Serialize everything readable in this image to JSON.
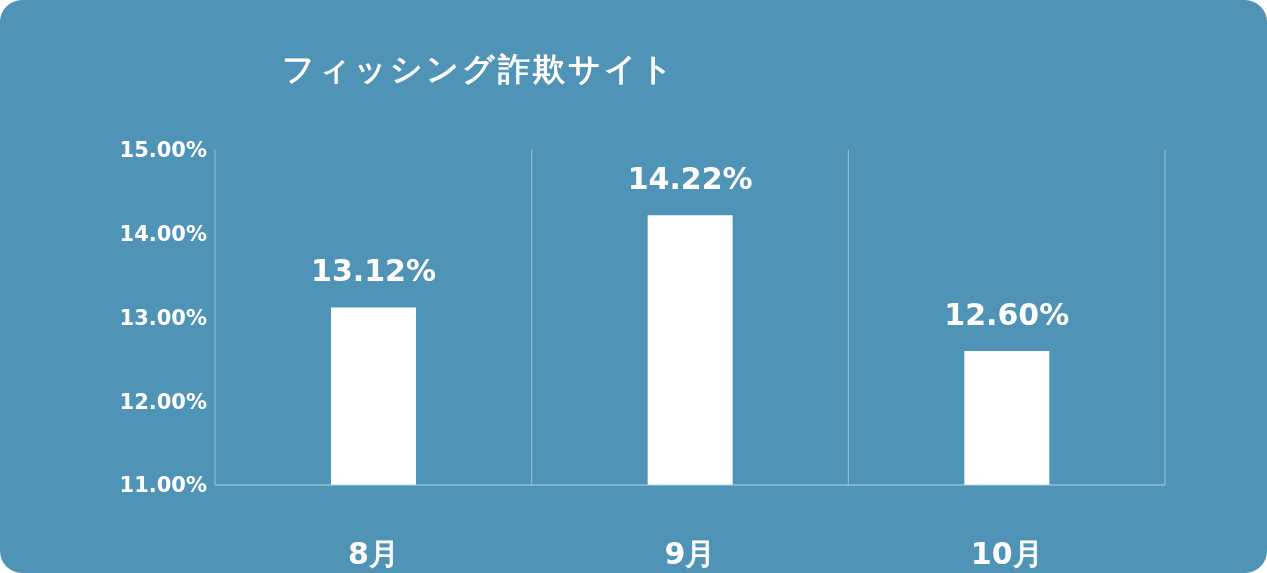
{
  "chart_data": {
    "type": "bar",
    "title": "フィッシング詐欺サイト",
    "categories": [
      "8月",
      "9月",
      "10月"
    ],
    "values": [
      13.12,
      14.22,
      12.6
    ],
    "value_labels": [
      "13.12%",
      "14.22%",
      "12.60%"
    ],
    "color": "#ffffff",
    "ylim": [
      11,
      15
    ],
    "yticks": [
      {
        "value": 11,
        "label": "11.00%"
      },
      {
        "value": 12,
        "label": "12.00%"
      },
      {
        "value": 13,
        "label": "13.00%"
      },
      {
        "value": 14,
        "label": "14.00%"
      },
      {
        "value": 15,
        "label": "15.00%"
      }
    ],
    "grid": "x"
  }
}
